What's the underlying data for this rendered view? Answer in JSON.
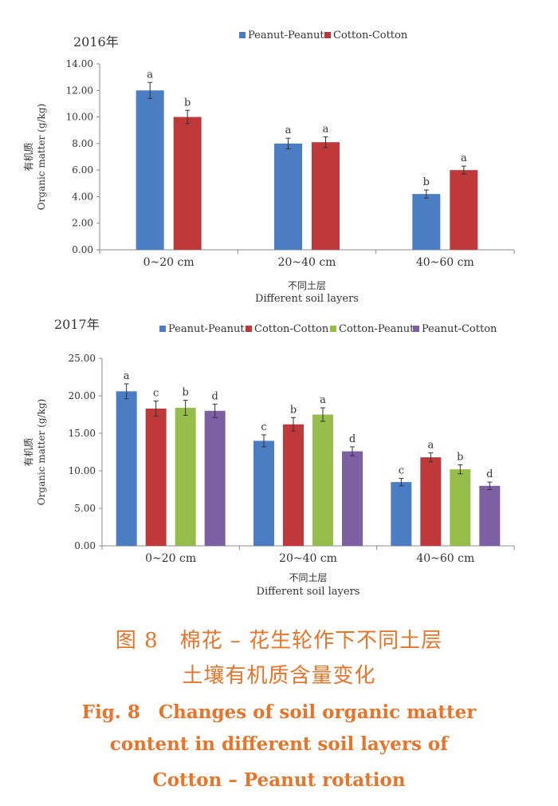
{
  "chart_data": [
    {
      "type": "bar",
      "year_label": "2016年",
      "ylabel_cn": "有机质",
      "ylabel_en": "Organic matter (g/kg)",
      "xlabel_cn": "不同土层",
      "xlabel_en": "Different soil layers",
      "categories": [
        "0~20 cm",
        "20~40 cm",
        "40~60 cm"
      ],
      "ylim": [
        0,
        14
      ],
      "yticks": [
        "0.00",
        "2.00",
        "4.00",
        "6.00",
        "8.00",
        "10.00",
        "12.00",
        "14.00"
      ],
      "legend_position": "top",
      "series": [
        {
          "name": "Peanut-Peanut",
          "color": "#4A7DC2",
          "values": [
            12.0,
            8.0,
            4.2
          ],
          "errors": [
            0.6,
            0.4,
            0.3
          ],
          "letters": [
            "a",
            "a",
            "b"
          ]
        },
        {
          "name": "Cotton-Cotton",
          "color": "#C0393A",
          "values": [
            10.0,
            8.1,
            6.0
          ],
          "errors": [
            0.5,
            0.4,
            0.3
          ],
          "letters": [
            "b",
            "a",
            "a"
          ]
        }
      ]
    },
    {
      "type": "bar",
      "year_label": "2017年",
      "ylabel_cn": "有机质",
      "ylabel_en": "Organic matter (g/kg)",
      "xlabel_cn": "不同土层",
      "xlabel_en": "Different soil layers",
      "categories": [
        "0~20 cm",
        "20~40 cm",
        "40~60 cm"
      ],
      "ylim": [
        0,
        25
      ],
      "yticks": [
        "0.00",
        "5.00",
        "10.00",
        "15.00",
        "20.00",
        "25.00"
      ],
      "legend_position": "top",
      "series": [
        {
          "name": "Peanut-Peanut",
          "color": "#4A7DC2",
          "values": [
            20.6,
            14.0,
            8.5
          ],
          "errors": [
            1.0,
            0.8,
            0.5
          ],
          "letters": [
            "a",
            "c",
            "c"
          ]
        },
        {
          "name": "Cotton-Cotton",
          "color": "#C0393A",
          "values": [
            18.3,
            16.2,
            11.8
          ],
          "errors": [
            1.0,
            0.9,
            0.6
          ],
          "letters": [
            "c",
            "b",
            "a"
          ]
        },
        {
          "name": "Cotton-Peanut",
          "color": "#96BC4A",
          "values": [
            18.4,
            17.5,
            10.2
          ],
          "errors": [
            1.0,
            0.9,
            0.6
          ],
          "letters": [
            "b",
            "a",
            "b"
          ]
        },
        {
          "name": "Peanut-Cotton",
          "color": "#7D5FA4",
          "values": [
            18.0,
            12.6,
            8.0
          ],
          "errors": [
            0.9,
            0.6,
            0.5
          ],
          "letters": [
            "d",
            "d",
            "d"
          ]
        }
      ]
    }
  ],
  "caption": {
    "cn_line1": "图 8　棉花 – 花生轮作下不同土层",
    "cn_line2": "土壤有机质含量变化",
    "en_line1": "Fig. 8　Changes of soil organic matter",
    "en_line2": "content in different soil layers of",
    "en_line3": "Cotton – Peanut rotation"
  }
}
